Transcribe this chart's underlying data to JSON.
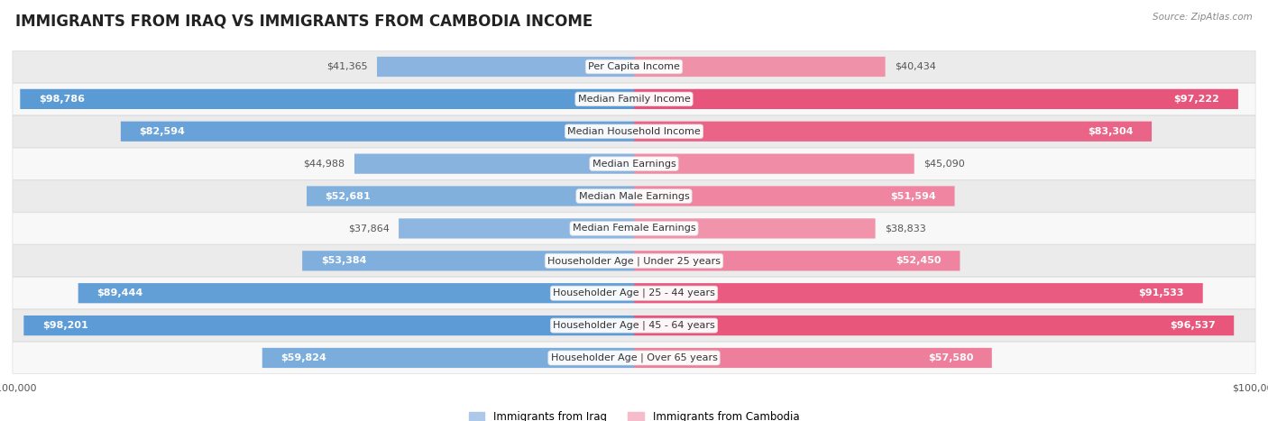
{
  "title": "IMMIGRANTS FROM IRAQ VS IMMIGRANTS FROM CAMBODIA INCOME",
  "source": "Source: ZipAtlas.com",
  "categories": [
    "Per Capita Income",
    "Median Family Income",
    "Median Household Income",
    "Median Earnings",
    "Median Male Earnings",
    "Median Female Earnings",
    "Householder Age | Under 25 years",
    "Householder Age | 25 - 44 years",
    "Householder Age | 45 - 64 years",
    "Householder Age | Over 65 years"
  ],
  "iraq_values": [
    41365,
    98786,
    82594,
    44988,
    52681,
    37864,
    53384,
    89444,
    98201,
    59824
  ],
  "cambodia_values": [
    40434,
    97222,
    83304,
    45090,
    51594,
    38833,
    52450,
    91533,
    96537,
    57580
  ],
  "iraq_labels": [
    "$41,365",
    "$98,786",
    "$82,594",
    "$44,988",
    "$52,681",
    "$37,864",
    "$53,384",
    "$89,444",
    "$98,201",
    "$59,824"
  ],
  "cambodia_labels": [
    "$40,434",
    "$97,222",
    "$83,304",
    "$45,090",
    "$51,594",
    "$38,833",
    "$52,450",
    "$91,533",
    "$96,537",
    "$57,580"
  ],
  "iraq_color_low": "#adc8e8",
  "iraq_color_high": "#5b9bd5",
  "cambodia_color_low": "#f7bccb",
  "cambodia_color_high": "#e8537a",
  "iraq_label_color_inside": "#ffffff",
  "iraq_label_color_outside": "#555555",
  "cambodia_label_color_inside": "#ffffff",
  "cambodia_label_color_outside": "#555555",
  "max_value": 100000,
  "background_color": "#ffffff",
  "row_bg_odd": "#ebebeb",
  "row_bg_even": "#f8f8f8",
  "legend_iraq": "Immigrants from Iraq",
  "legend_cambodia": "Immigrants from Cambodia",
  "title_fontsize": 12,
  "label_fontsize": 8,
  "category_fontsize": 8,
  "axis_label_fontsize": 8,
  "inside_threshold": 50000,
  "high_threshold": 75000
}
